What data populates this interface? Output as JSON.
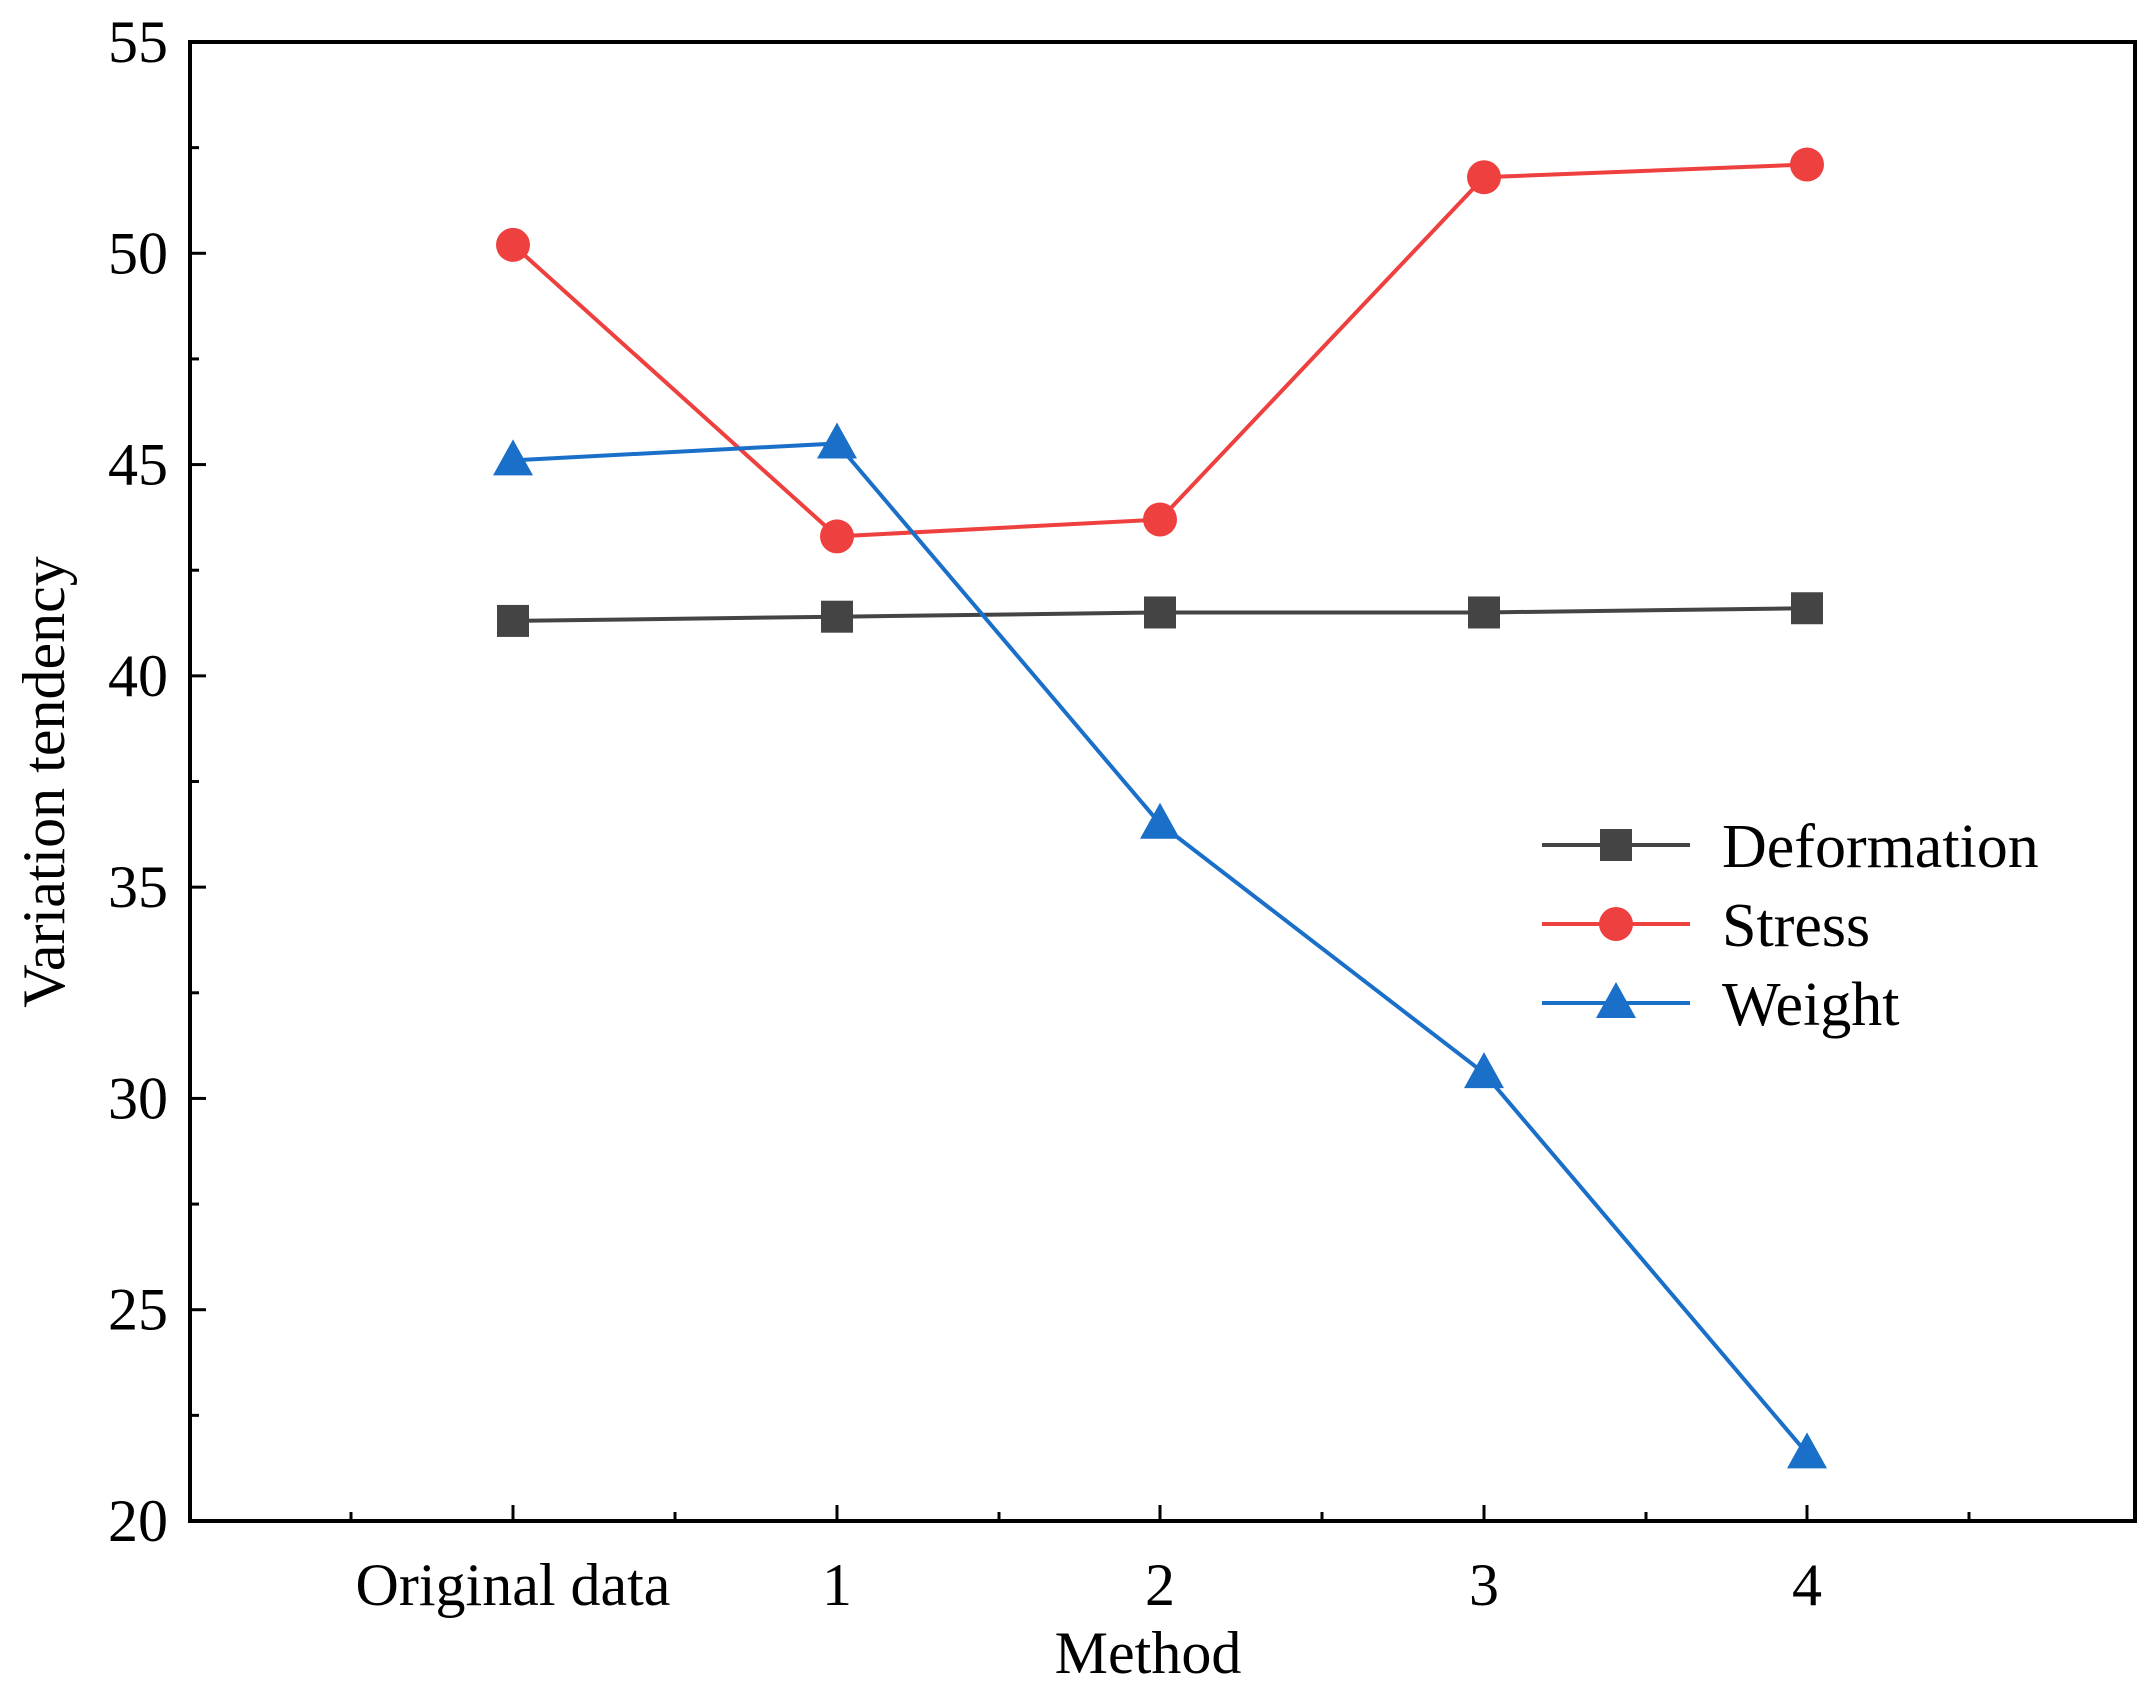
{
  "chart_data": {
    "type": "line",
    "title": "",
    "xlabel": "Method",
    "ylabel": "Variation tendency",
    "categories": [
      "Original data",
      "1",
      "2",
      "3",
      "4"
    ],
    "ylim": [
      20,
      55
    ],
    "yticks": [
      "20",
      "25",
      "30",
      "35",
      "40",
      "45",
      "50",
      "55"
    ],
    "grid": false,
    "legend_position": "right",
    "series": [
      {
        "name": "Deformation",
        "marker": "square",
        "color": "#444444",
        "values": [
          41.3,
          41.4,
          41.5,
          41.5,
          41.6
        ]
      },
      {
        "name": "Stress",
        "marker": "circle",
        "color": "#ef4040",
        "values": [
          50.2,
          43.3,
          43.7,
          51.8,
          52.1
        ]
      },
      {
        "name": "Weight",
        "marker": "triangle",
        "color": "#1a6fc9",
        "values": [
          45.1,
          45.5,
          36.5,
          30.6,
          21.6
        ]
      }
    ]
  }
}
